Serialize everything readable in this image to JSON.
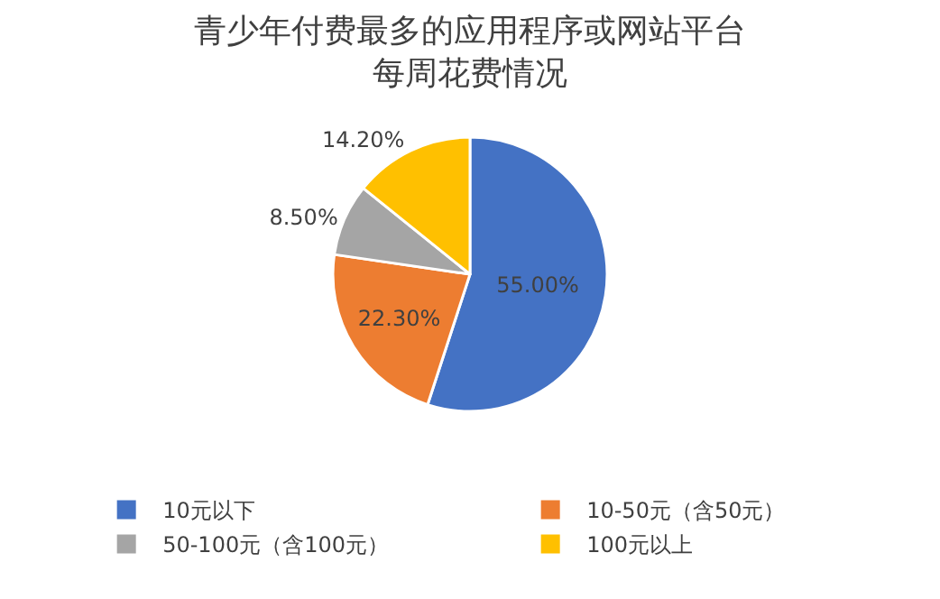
{
  "chart_data": {
    "type": "pie",
    "title": "青少年付费最多的应用程序或网站平台每周花费情况",
    "categories": [
      "10元以下",
      "10-50元（含50元）",
      "50-100元（含100元）",
      "100元以上"
    ],
    "values": [
      55.0,
      22.3,
      8.5,
      14.2
    ],
    "value_labels": [
      "55.00%",
      "22.30%",
      "8.50%",
      "14.20%"
    ],
    "colors": [
      "#4472c4",
      "#ed7d31",
      "#a5a5a5",
      "#ffc000"
    ],
    "legend": "bottom"
  }
}
